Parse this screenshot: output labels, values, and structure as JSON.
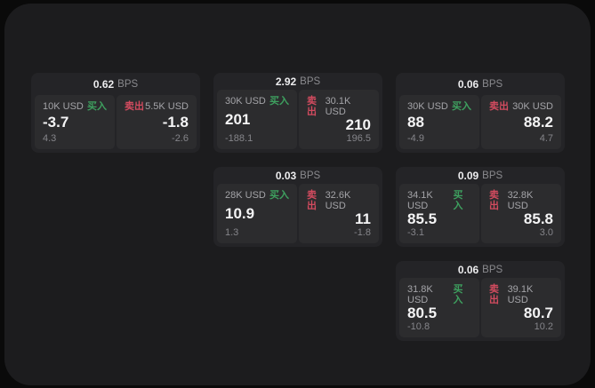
{
  "labels": {
    "bps_suffix": "BPS",
    "buy": "买入",
    "sell": "卖出"
  },
  "theme": {
    "buy_color": "#3ea05f",
    "sell_color": "#d24b5f",
    "page_bg": "#1c1c1e",
    "card_bg": "#242427",
    "panel_bg": "#2c2c2e"
  },
  "cards": [
    {
      "bps": "0.62",
      "grid": {
        "row": 1,
        "col": 1
      },
      "buy": {
        "size": "10K USD",
        "value": "-3.7",
        "change": "4.3"
      },
      "sell": {
        "size": "5.5K USD",
        "value": "-1.8",
        "change": "-2.6"
      }
    },
    {
      "bps": "2.92",
      "grid": {
        "row": 1,
        "col": 2
      },
      "buy": {
        "size": "30K USD",
        "value": "201",
        "change": "-188.1"
      },
      "sell": {
        "size": "30.1K USD",
        "value": "210",
        "change": "196.5"
      }
    },
    {
      "bps": "0.06",
      "grid": {
        "row": 1,
        "col": 3
      },
      "buy": {
        "size": "30K USD",
        "value": "88",
        "change": "-4.9"
      },
      "sell": {
        "size": "30K USD",
        "value": "88.2",
        "change": "4.7"
      }
    },
    {
      "bps": "0.03",
      "grid": {
        "row": 2,
        "col": 2
      },
      "buy": {
        "size": "28K USD",
        "value": "10.9",
        "change": "1.3"
      },
      "sell": {
        "size": "32.6K USD",
        "value": "11",
        "change": "-1.8"
      }
    },
    {
      "bps": "0.09",
      "grid": {
        "row": 2,
        "col": 3
      },
      "buy": {
        "size": "34.1K USD",
        "value": "85.5",
        "change": "-3.1"
      },
      "sell": {
        "size": "32.8K USD",
        "value": "85.8",
        "change": "3.0"
      }
    },
    {
      "bps": "0.06",
      "grid": {
        "row": 3,
        "col": 3
      },
      "buy": {
        "size": "31.8K USD",
        "value": "80.5",
        "change": "-10.8"
      },
      "sell": {
        "size": "39.1K USD",
        "value": "80.7",
        "change": "10.2"
      }
    }
  ]
}
